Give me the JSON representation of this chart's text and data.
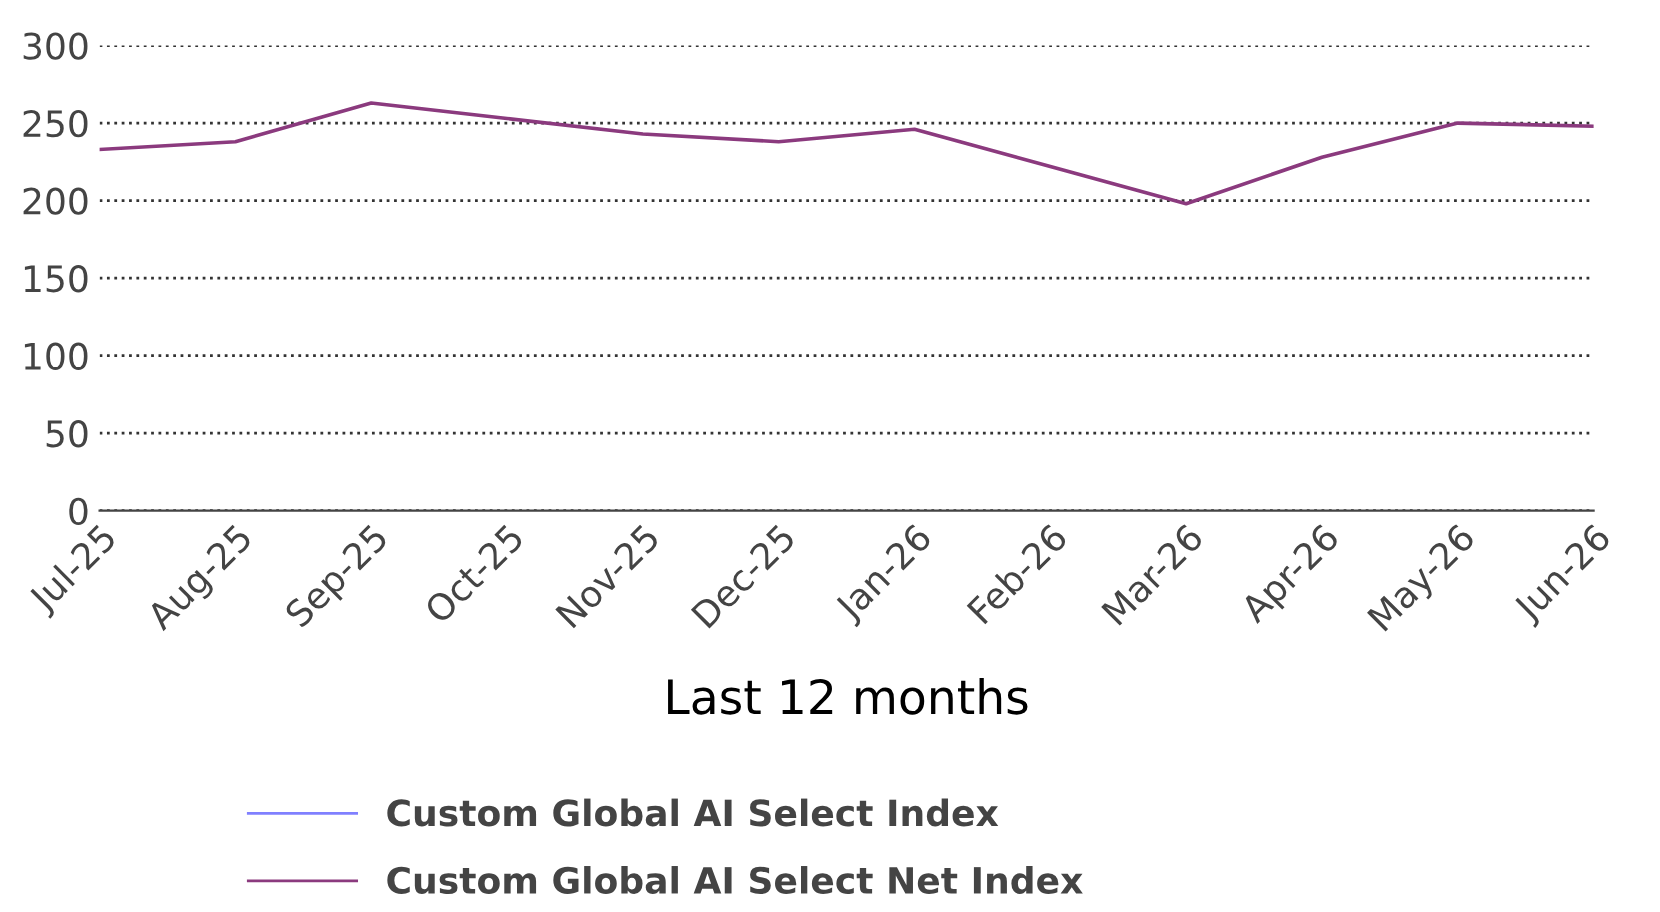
{
  "chart_data": {
    "type": "line",
    "xlabel": "Last 12 months",
    "categories": [
      "Jul-25",
      "Aug-25",
      "Sep-25",
      "Oct-25",
      "Nov-25",
      "Dec-25",
      "Jan-26",
      "Feb-26",
      "Mar-26",
      "Apr-26",
      "May-26",
      "Jun-26"
    ],
    "series": [
      {
        "name": "Custom Global AI Select Index",
        "color": "#8080ff",
        "values": [
          null,
          null,
          null,
          null,
          null,
          null,
          null,
          null,
          null,
          null,
          null,
          null
        ]
      },
      {
        "name": "Custom Global AI Select Net Index",
        "color": "#8b3a7e",
        "values": [
          233,
          238,
          263,
          253,
          243,
          238,
          246,
          222,
          198,
          228,
          250,
          248
        ]
      }
    ],
    "ylim": [
      0,
      300
    ],
    "yticks": [
      0,
      50,
      100,
      150,
      200,
      250,
      300
    ],
    "grid": "y",
    "legend": "bottom",
    "marker": "none",
    "line_style": "solid"
  }
}
